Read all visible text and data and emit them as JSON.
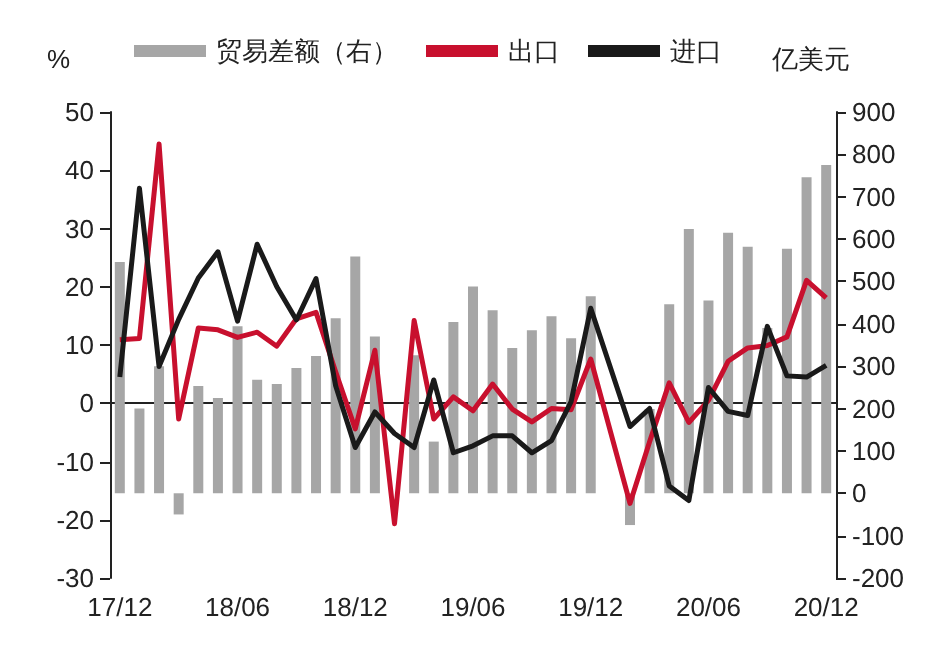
{
  "chart_data": {
    "type": "bar",
    "ylabel": "%",
    "y2label": "亿美元",
    "categories": [
      "17/12",
      null,
      null,
      null,
      null,
      null,
      "18/06",
      null,
      null,
      null,
      null,
      null,
      "18/12",
      null,
      null,
      null,
      null,
      null,
      "19/06",
      null,
      null,
      null,
      null,
      null,
      "19/12",
      null,
      null,
      null,
      null,
      null,
      "20/06",
      null,
      null,
      null,
      null,
      null,
      "20/12"
    ],
    "series": [
      {
        "name": "贸易差额（右）",
        "axis": "y2",
        "color": "#a6a6a6",
        "values": [
          546,
          200,
          300,
          -50,
          253,
          225,
          394,
          268,
          258,
          296,
          324,
          413,
          559,
          370,
          null,
          326,
          122,
          404,
          488,
          432,
          343,
          385,
          418,
          366,
          465,
          null,
          -75,
          199,
          446,
          624,
          455,
          615,
          582,
          390,
          577,
          746,
          775
        ]
      },
      {
        "name": "出口",
        "type": "line",
        "color": "#c8102e",
        "values": [
          10.9,
          11.1,
          44.5,
          -2.7,
          12.9,
          12.6,
          11.3,
          12.2,
          9.8,
          14.5,
          15.6,
          5.4,
          -4.4,
          9.1,
          -20.7,
          14.2,
          -2.7,
          1.1,
          -1.3,
          3.3,
          -1.0,
          -3.2,
          -0.9,
          -1.1,
          7.6,
          null,
          -17.2,
          -6.6,
          3.5,
          -3.3,
          0.5,
          7.2,
          9.5,
          9.9,
          11.4,
          21.1,
          18.1
        ]
      },
      {
        "name": "进口",
        "type": "line",
        "color": "#1a1a1a",
        "values": [
          4.5,
          36.9,
          6.3,
          14.4,
          21.5,
          26.0,
          14.1,
          27.3,
          20.0,
          14.3,
          21.4,
          3.0,
          -7.6,
          -1.5,
          -5.2,
          -7.6,
          4.0,
          -8.5,
          -7.3,
          -5.6,
          -5.6,
          -8.5,
          -6.4,
          0.3,
          16.3,
          null,
          -4.0,
          -0.9,
          -14.2,
          -16.7,
          2.7,
          -1.4,
          -2.1,
          13.2,
          4.7,
          4.5,
          6.5
        ]
      }
    ],
    "ylim": [
      -30,
      50
    ],
    "yticks": [
      -30,
      -20,
      -10,
      0,
      10,
      20,
      30,
      40,
      50
    ],
    "y2lim": [
      -200,
      900
    ],
    "y2ticks": [
      -200,
      -100,
      0,
      100,
      200,
      300,
      400,
      500,
      600,
      700,
      800,
      900
    ],
    "legend": "top",
    "marker": "none"
  }
}
